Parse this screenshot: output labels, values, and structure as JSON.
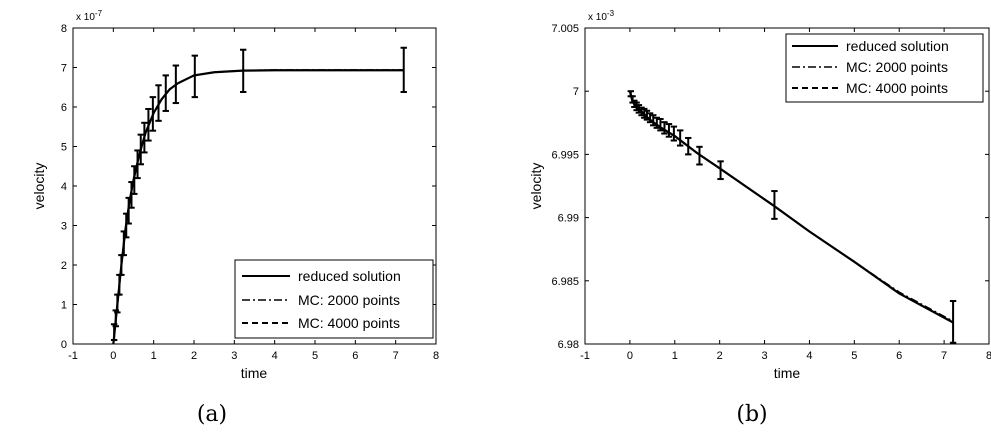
{
  "chart_data": [
    {
      "type": "line",
      "caption": "(a)",
      "xlabel": "time",
      "ylabel": "velocity",
      "exponent_label": "x 10",
      "exponent_power": "-7",
      "xlim": [
        -1,
        8
      ],
      "ylim": [
        0,
        8
      ],
      "xticks": [
        -1,
        0,
        1,
        2,
        3,
        4,
        5,
        6,
        7,
        8
      ],
      "yticks": [
        0,
        1,
        2,
        3,
        4,
        5,
        6,
        7,
        8
      ],
      "legend": {
        "position": "bottom-right",
        "entries": [
          "reduced solution",
          "MC: 2000 points",
          "MC: 4000 points"
        ]
      },
      "series": [
        {
          "name": "reduced solution",
          "style": "solid",
          "x": [
            0,
            0.05,
            0.1,
            0.15,
            0.2,
            0.25,
            0.3,
            0.4,
            0.5,
            0.6,
            0.7,
            0.8,
            0.9,
            1.0,
            1.2,
            1.4,
            1.6,
            2.0,
            2.5,
            3.2,
            4,
            5,
            6,
            7.2
          ],
          "y": [
            0,
            0.5,
            1.0,
            1.5,
            2.0,
            2.45,
            2.9,
            3.6,
            4.15,
            4.6,
            5.0,
            5.35,
            5.6,
            5.85,
            6.2,
            6.45,
            6.6,
            6.8,
            6.88,
            6.92,
            6.93,
            6.93,
            6.93,
            6.93
          ]
        },
        {
          "name": "MC: 2000 points",
          "style": "dashdot",
          "x": [
            0,
            0.05,
            0.1,
            0.15,
            0.2,
            0.25,
            0.3,
            0.4,
            0.5,
            0.6,
            0.7,
            0.8,
            0.9,
            1.0,
            1.2,
            1.4,
            1.6,
            2.0,
            2.5,
            3.2,
            4,
            5,
            6,
            7.2
          ],
          "y": [
            0,
            0.5,
            1.0,
            1.5,
            2.0,
            2.45,
            2.9,
            3.6,
            4.15,
            4.6,
            5.0,
            5.35,
            5.6,
            5.85,
            6.2,
            6.45,
            6.6,
            6.8,
            6.88,
            6.92,
            6.94,
            6.94,
            6.94,
            6.94
          ]
        },
        {
          "name": "MC: 4000 points",
          "style": "dashed",
          "x": [
            0,
            0.05,
            0.1,
            0.15,
            0.2,
            0.25,
            0.3,
            0.4,
            0.5,
            0.6,
            0.7,
            0.8,
            0.9,
            1.0,
            1.2,
            1.4,
            1.6,
            2.0,
            2.5,
            3.2,
            4,
            5,
            6,
            7.2
          ],
          "y": [
            0,
            0.5,
            1.0,
            1.5,
            2.0,
            2.45,
            2.9,
            3.6,
            4.15,
            4.6,
            5.0,
            5.35,
            5.6,
            5.85,
            6.2,
            6.45,
            6.6,
            6.8,
            6.88,
            6.92,
            6.93,
            6.93,
            6.93,
            6.93
          ]
        }
      ],
      "errorbars": [
        {
          "x": 0.02,
          "y": 0.3,
          "lo": 0.1,
          "hi": 0.5
        },
        {
          "x": 0.06,
          "y": 0.65,
          "lo": 0.45,
          "hi": 0.85
        },
        {
          "x": 0.1,
          "y": 1.0,
          "lo": 0.8,
          "hi": 1.25
        },
        {
          "x": 0.15,
          "y": 1.5,
          "lo": 1.25,
          "hi": 1.75
        },
        {
          "x": 0.2,
          "y": 2.0,
          "lo": 1.75,
          "hi": 2.25
        },
        {
          "x": 0.26,
          "y": 2.55,
          "lo": 2.25,
          "hi": 2.85
        },
        {
          "x": 0.32,
          "y": 3.0,
          "lo": 2.7,
          "hi": 3.3
        },
        {
          "x": 0.38,
          "y": 3.4,
          "lo": 3.05,
          "hi": 3.7
        },
        {
          "x": 0.45,
          "y": 3.8,
          "lo": 3.45,
          "hi": 4.1
        },
        {
          "x": 0.52,
          "y": 4.2,
          "lo": 3.8,
          "hi": 4.5
        },
        {
          "x": 0.6,
          "y": 4.6,
          "lo": 4.2,
          "hi": 4.9
        },
        {
          "x": 0.68,
          "y": 4.95,
          "lo": 4.55,
          "hi": 5.3
        },
        {
          "x": 0.77,
          "y": 5.25,
          "lo": 4.85,
          "hi": 5.6
        },
        {
          "x": 0.87,
          "y": 5.55,
          "lo": 5.15,
          "hi": 5.95
        },
        {
          "x": 0.98,
          "y": 5.85,
          "lo": 5.4,
          "hi": 6.25
        },
        {
          "x": 1.12,
          "y": 6.1,
          "lo": 5.65,
          "hi": 6.55
        },
        {
          "x": 1.3,
          "y": 6.35,
          "lo": 5.9,
          "hi": 6.8
        },
        {
          "x": 1.55,
          "y": 6.6,
          "lo": 6.1,
          "hi": 7.05
        },
        {
          "x": 2.02,
          "y": 6.78,
          "lo": 6.25,
          "hi": 7.3
        },
        {
          "x": 3.22,
          "y": 6.92,
          "lo": 6.38,
          "hi": 7.45
        },
        {
          "x": 7.2,
          "y": 6.93,
          "lo": 6.38,
          "hi": 7.5
        }
      ]
    },
    {
      "type": "line",
      "caption": "(b)",
      "xlabel": "time",
      "ylabel": "velocity",
      "exponent_label": "x 10",
      "exponent_power": "-3",
      "xlim": [
        -1,
        8
      ],
      "ylim": [
        6.98,
        7.005
      ],
      "xticks": [
        -1,
        0,
        1,
        2,
        3,
        4,
        5,
        6,
        7,
        8
      ],
      "yticks": [
        6.98,
        6.985,
        6.99,
        6.995,
        7,
        7.005
      ],
      "ytick_labels": [
        "6.98",
        "6.985",
        "6.99",
        "6.995",
        "7",
        "7.005"
      ],
      "legend": {
        "position": "top-right",
        "entries": [
          "reduced solution",
          "MC: 2000 points",
          "MC: 4000 points"
        ]
      },
      "series": [
        {
          "name": "reduced solution",
          "style": "solid",
          "x": [
            0,
            0.05,
            0.1,
            0.2,
            0.3,
            0.4,
            0.5,
            0.7,
            1.0,
            1.5,
            2.0,
            3.2,
            4,
            5,
            6,
            7.2
          ],
          "y": [
            7.0,
            6.9993,
            6.99895,
            6.9986,
            6.99825,
            6.9979,
            6.9976,
            6.9971,
            6.99645,
            6.9951,
            6.9939,
            6.99095,
            6.9889,
            6.9865,
            6.984,
            6.9817
          ]
        },
        {
          "name": "MC: 2000 points",
          "style": "dashdot",
          "x": [
            0,
            0.05,
            0.1,
            0.2,
            0.3,
            0.4,
            0.5,
            0.7,
            1.0,
            1.5,
            2.0,
            3.2,
            4,
            5,
            6,
            7.2
          ],
          "y": [
            7.0,
            6.9993,
            6.99895,
            6.9986,
            6.99825,
            6.9979,
            6.9976,
            6.9971,
            6.99645,
            6.9951,
            6.9939,
            6.99095,
            6.9889,
            6.9865,
            6.9841,
            6.9818
          ]
        },
        {
          "name": "MC: 4000 points",
          "style": "dashed",
          "x": [
            0,
            0.05,
            0.1,
            0.2,
            0.3,
            0.4,
            0.5,
            0.7,
            1.0,
            1.5,
            2.0,
            3.2,
            4,
            5,
            6,
            7.2
          ],
          "y": [
            7.0,
            6.9993,
            6.99895,
            6.9986,
            6.99825,
            6.9979,
            6.9976,
            6.9971,
            6.99645,
            6.9951,
            6.9939,
            6.99095,
            6.9889,
            6.9865,
            6.984,
            6.9817
          ]
        }
      ],
      "errorbars": [
        {
          "x": 0.02,
          "y": 6.9998,
          "lo": 6.9996,
          "hi": 7.0
        },
        {
          "x": 0.06,
          "y": 6.99935,
          "lo": 6.9991,
          "hi": 6.9996
        },
        {
          "x": 0.1,
          "y": 6.999,
          "lo": 6.99875,
          "hi": 6.99925
        },
        {
          "x": 0.15,
          "y": 6.9988,
          "lo": 6.9985,
          "hi": 6.9991
        },
        {
          "x": 0.2,
          "y": 6.9986,
          "lo": 6.9983,
          "hi": 6.9989
        },
        {
          "x": 0.26,
          "y": 6.9984,
          "lo": 6.9981,
          "hi": 6.9987
        },
        {
          "x": 0.32,
          "y": 6.99825,
          "lo": 6.9979,
          "hi": 6.9986
        },
        {
          "x": 0.38,
          "y": 6.9981,
          "lo": 6.99775,
          "hi": 6.99845
        },
        {
          "x": 0.45,
          "y": 6.9979,
          "lo": 6.99755,
          "hi": 6.99825
        },
        {
          "x": 0.52,
          "y": 6.9977,
          "lo": 6.9973,
          "hi": 6.9981
        },
        {
          "x": 0.6,
          "y": 6.9975,
          "lo": 6.9971,
          "hi": 6.9979
        },
        {
          "x": 0.68,
          "y": 6.99735,
          "lo": 6.9969,
          "hi": 6.9978
        },
        {
          "x": 0.77,
          "y": 6.9971,
          "lo": 6.99665,
          "hi": 6.99755
        },
        {
          "x": 0.87,
          "y": 6.9969,
          "lo": 6.9964,
          "hi": 6.9974
        },
        {
          "x": 0.98,
          "y": 6.99665,
          "lo": 6.9961,
          "hi": 6.9972
        },
        {
          "x": 1.12,
          "y": 6.9963,
          "lo": 6.9957,
          "hi": 6.9969
        },
        {
          "x": 1.3,
          "y": 6.99565,
          "lo": 6.995,
          "hi": 6.9963
        },
        {
          "x": 1.55,
          "y": 6.9949,
          "lo": 6.9942,
          "hi": 6.9956
        },
        {
          "x": 2.02,
          "y": 6.9939,
          "lo": 6.99305,
          "hi": 6.99445
        },
        {
          "x": 3.22,
          "y": 6.991,
          "lo": 6.9899,
          "hi": 6.9921
        },
        {
          "x": 7.2,
          "y": 6.9817,
          "lo": 6.9801,
          "hi": 6.9834
        }
      ]
    }
  ]
}
